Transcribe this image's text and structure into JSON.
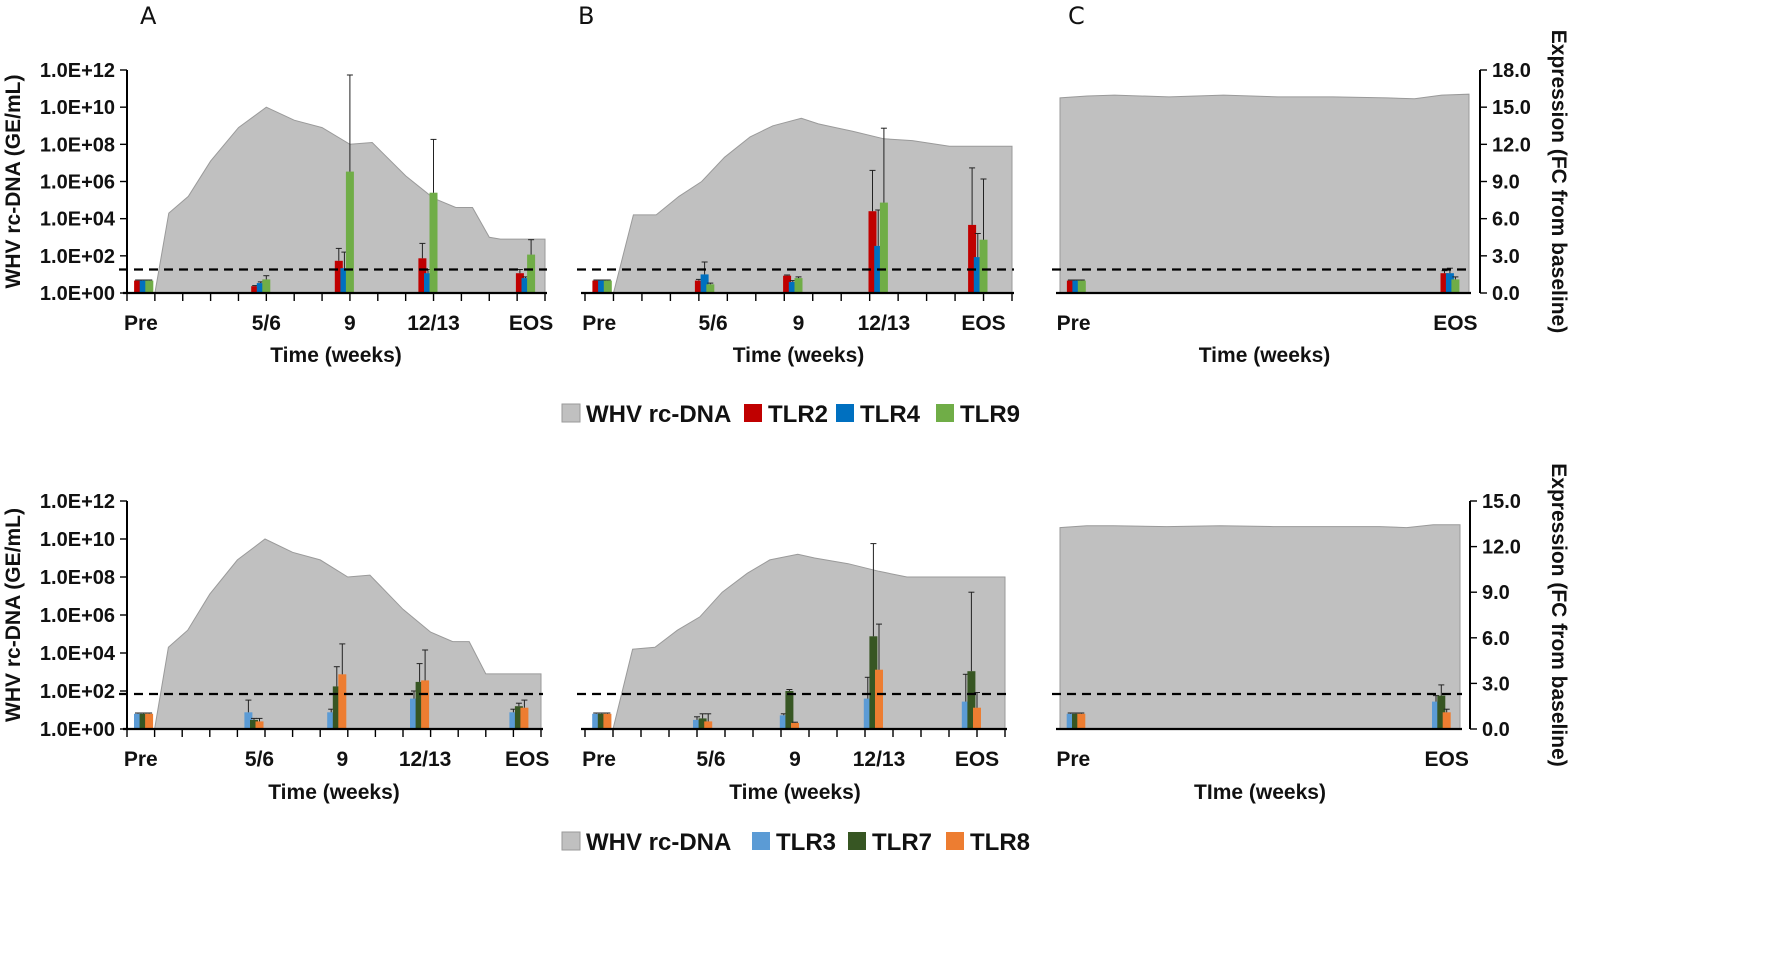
{
  "colors": {
    "area": "#c0c0c0",
    "area_stroke": "#9a9a9a",
    "TLR2": "#c00000",
    "TLR4": "#0070c0",
    "TLR9": "#70ad47",
    "TLR3": "#5b9bd5",
    "TLR7": "#375623",
    "TLR8": "#ed7d31"
  },
  "legends": [
    {
      "items": [
        {
          "label": "WHV rc-DNA",
          "kind": "area",
          "color": "#c0c0c0"
        },
        {
          "label": "TLR2",
          "kind": "bar",
          "color": "#c00000"
        },
        {
          "label": "TLR4",
          "kind": "bar",
          "color": "#0070c0"
        },
        {
          "label": "TLR9",
          "kind": "bar",
          "color": "#70ad47"
        }
      ]
    },
    {
      "items": [
        {
          "label": "WHV rc-DNA",
          "kind": "area",
          "color": "#c0c0c0"
        },
        {
          "label": "TLR3",
          "kind": "bar",
          "color": "#5b9bd5"
        },
        {
          "label": "TLR7",
          "kind": "bar",
          "color": "#375623"
        },
        {
          "label": "TLR8",
          "kind": "bar",
          "color": "#ed7d31"
        }
      ]
    }
  ],
  "chart_data": [
    {
      "id": "top-A",
      "panel_letter": "A",
      "type": "bar+area",
      "yaxis_side": "left",
      "ylabel": "WHV rc-DNA (GE/mL)",
      "xlabel": "Time (weeks)",
      "y_left_ticks": [
        "1.0E+00",
        "1.0E+02",
        "1.0E+04",
        "1.0E+06",
        "1.0E+08",
        "1.0E+10",
        "1.0E+12"
      ],
      "y_left_range_log10": [
        0,
        12
      ],
      "y_right_range": [
        0,
        18
      ],
      "x_ticks": 16,
      "category_labels": [
        {
          "label": "Pre",
          "at": 0.5
        },
        {
          "label": "5/6",
          "at": 5
        },
        {
          "label": "9",
          "at": 8
        },
        {
          "label": "12/13",
          "at": 11
        },
        {
          "label": "EOS",
          "at": 14.5
        }
      ],
      "area_log10": [
        [
          0,
          0
        ],
        [
          1,
          0
        ],
        [
          1.5,
          4.3
        ],
        [
          2.2,
          5.2
        ],
        [
          3,
          7.1
        ],
        [
          4,
          8.9
        ],
        [
          5,
          10
        ],
        [
          6,
          9.3
        ],
        [
          7,
          8.9
        ],
        [
          8,
          8
        ],
        [
          8.8,
          8.1
        ],
        [
          10,
          6.3
        ],
        [
          11,
          5.1
        ],
        [
          11.8,
          4.6
        ],
        [
          12.4,
          4.6
        ],
        [
          13,
          3
        ],
        [
          13.4,
          2.9
        ],
        [
          15,
          2.9
        ],
        [
          15,
          0
        ]
      ],
      "baseline_fc": 1.9,
      "series": [
        {
          "name": "TLR2",
          "bars": [
            {
              "x": 0.4,
              "v": 1.0,
              "err": 0.05
            },
            {
              "x": 4.6,
              "v": 0.55,
              "err": 0.05
            },
            {
              "x": 7.6,
              "v": 2.6,
              "err": 1.0
            },
            {
              "x": 10.6,
              "v": 2.8,
              "err": 1.2
            },
            {
              "x": 14.1,
              "v": 1.6,
              "err": 0.3
            }
          ]
        },
        {
          "name": "TLR4",
          "bars": [
            {
              "x": 0.6,
              "v": 1.0,
              "err": 0.05
            },
            {
              "x": 4.8,
              "v": 0.8,
              "err": 0.1
            },
            {
              "x": 7.8,
              "v": 2.0,
              "err": 1.3
            },
            {
              "x": 10.8,
              "v": 1.6,
              "err": 0.3
            },
            {
              "x": 14.3,
              "v": 1.2,
              "err": 0.1
            }
          ]
        },
        {
          "name": "TLR9",
          "bars": [
            {
              "x": 0.8,
              "v": 1.0,
              "err": 0.05
            },
            {
              "x": 5.0,
              "v": 1.1,
              "err": 0.3
            },
            {
              "x": 8.0,
              "v": 9.8,
              "err": 7.8
            },
            {
              "x": 11.0,
              "v": 8.1,
              "err": 4.3
            },
            {
              "x": 14.5,
              "v": 3.1,
              "err": 1.2
            }
          ]
        }
      ]
    },
    {
      "id": "top-B",
      "panel_letter": "B",
      "type": "bar+area",
      "yaxis_side": "none",
      "ylabel": "",
      "xlabel": "Time (weeks)",
      "y_left_range_log10": [
        0,
        12
      ],
      "y_right_range": [
        0,
        18
      ],
      "x_ticks": 16,
      "category_labels": [
        {
          "label": "Pre",
          "at": 0.5
        },
        {
          "label": "5/6",
          "at": 4.5
        },
        {
          "label": "9",
          "at": 7.5
        },
        {
          "label": "12/13",
          "at": 10.5
        },
        {
          "label": "EOS",
          "at": 14
        }
      ],
      "area_log10": [
        [
          0,
          0
        ],
        [
          1,
          0
        ],
        [
          1.7,
          4.2
        ],
        [
          2.5,
          4.2
        ],
        [
          3.3,
          5.2
        ],
        [
          4.1,
          6
        ],
        [
          4.9,
          7.3
        ],
        [
          5.8,
          8.4
        ],
        [
          6.6,
          9
        ],
        [
          7.6,
          9.4
        ],
        [
          8.2,
          9.1
        ],
        [
          9.4,
          8.7
        ],
        [
          10.5,
          8.3
        ],
        [
          11.5,
          8.2
        ],
        [
          12.8,
          7.9
        ],
        [
          15,
          7.9
        ],
        [
          15,
          0
        ]
      ],
      "baseline_fc": 1.9,
      "series": [
        {
          "name": "TLR2",
          "bars": [
            {
              "x": 0.4,
              "v": 1.0,
              "err": 0.05
            },
            {
              "x": 4.0,
              "v": 1.0,
              "err": 0.1
            },
            {
              "x": 7.1,
              "v": 1.4,
              "err": 0.05
            },
            {
              "x": 10.1,
              "v": 6.6,
              "err": 3.3
            },
            {
              "x": 13.6,
              "v": 5.5,
              "err": 4.6
            }
          ]
        },
        {
          "name": "TLR4",
          "bars": [
            {
              "x": 0.6,
              "v": 1.0,
              "err": 0.05
            },
            {
              "x": 4.2,
              "v": 1.5,
              "err": 1.0
            },
            {
              "x": 7.3,
              "v": 0.9,
              "err": 0.1
            },
            {
              "x": 10.3,
              "v": 3.8,
              "err": 2.9
            },
            {
              "x": 13.8,
              "v": 2.9,
              "err": 1.9
            }
          ]
        },
        {
          "name": "TLR9",
          "bars": [
            {
              "x": 0.8,
              "v": 1.0,
              "err": 0.05
            },
            {
              "x": 4.4,
              "v": 0.7,
              "err": 0.1
            },
            {
              "x": 7.5,
              "v": 1.2,
              "err": 0.1
            },
            {
              "x": 10.5,
              "v": 7.3,
              "err": 6.0
            },
            {
              "x": 14.0,
              "v": 4.3,
              "err": 4.9
            }
          ]
        }
      ]
    },
    {
      "id": "top-C",
      "panel_letter": "C",
      "type": "bar+area",
      "yaxis_side": "right",
      "ylabel": "Expression (FC from baseline)",
      "xlabel": "Time (weeks)",
      "y_right_ticks": [
        "0.0",
        "3.0",
        "6.0",
        "9.0",
        "12.0",
        "15.0",
        "18.0"
      ],
      "y_left_range_log10": [
        0,
        12
      ],
      "y_right_range": [
        0,
        18
      ],
      "x_ticks": 0,
      "category_labels": [
        {
          "label": "Pre",
          "at": 0.5
        },
        {
          "label": "EOS",
          "at": 14.5
        }
      ],
      "area_log10": [
        [
          0,
          0
        ],
        [
          0,
          10.5
        ],
        [
          1,
          10.6
        ],
        [
          2,
          10.65
        ],
        [
          4,
          10.55
        ],
        [
          6,
          10.65
        ],
        [
          8,
          10.55
        ],
        [
          10,
          10.55
        ],
        [
          12,
          10.5
        ],
        [
          13,
          10.45
        ],
        [
          14,
          10.65
        ],
        [
          15,
          10.7
        ],
        [
          15,
          0
        ]
      ],
      "baseline_fc": 1.9,
      "series": [
        {
          "name": "TLR2",
          "bars": [
            {
              "x": 0.4,
              "v": 1.0,
              "err": 0.05
            },
            {
              "x": 14.1,
              "v": 1.6,
              "err": 0.2
            }
          ]
        },
        {
          "name": "TLR4",
          "bars": [
            {
              "x": 0.6,
              "v": 1.0,
              "err": 0.05
            },
            {
              "x": 14.3,
              "v": 1.6,
              "err": 0.4
            }
          ]
        },
        {
          "name": "TLR9",
          "bars": [
            {
              "x": 0.8,
              "v": 1.0,
              "err": 0.05
            },
            {
              "x": 14.5,
              "v": 1.1,
              "err": 0.2
            }
          ]
        }
      ]
    },
    {
      "id": "bottom-A",
      "panel_letter": "",
      "type": "bar+area",
      "yaxis_side": "left",
      "ylabel": "WHV rc-DNA (GE/mL)",
      "xlabel": "Time (weeks)",
      "y_left_ticks": [
        "1.0E+00",
        "1.0E+02",
        "1.0E+04",
        "1.0E+06",
        "1.0E+08",
        "1.0E+10",
        "1.0E+12"
      ],
      "y_left_range_log10": [
        0,
        12
      ],
      "y_right_range": [
        0,
        15
      ],
      "x_ticks": 16,
      "category_labels": [
        {
          "label": "Pre",
          "at": 0.5
        },
        {
          "label": "5/6",
          "at": 4.8
        },
        {
          "label": "9",
          "at": 7.8
        },
        {
          "label": "12/13",
          "at": 10.8
        },
        {
          "label": "EOS",
          "at": 14.5
        }
      ],
      "area_log10": [
        [
          0,
          0
        ],
        [
          1,
          0
        ],
        [
          1.5,
          4.3
        ],
        [
          2.2,
          5.2
        ],
        [
          3,
          7.1
        ],
        [
          4,
          8.9
        ],
        [
          5,
          10
        ],
        [
          6,
          9.3
        ],
        [
          7,
          8.9
        ],
        [
          8,
          8
        ],
        [
          8.8,
          8.1
        ],
        [
          10,
          6.3
        ],
        [
          11,
          5.1
        ],
        [
          11.8,
          4.6
        ],
        [
          12.4,
          4.6
        ],
        [
          13,
          2.9
        ],
        [
          13.4,
          2.9
        ],
        [
          15,
          2.9
        ],
        [
          15,
          0
        ]
      ],
      "baseline_fc": 2.3,
      "series": [
        {
          "name": "TLR3",
          "bars": [
            {
              "x": 0.4,
              "v": 1.0,
              "err": 0.05
            },
            {
              "x": 4.4,
              "v": 1.1,
              "err": 0.8
            },
            {
              "x": 7.4,
              "v": 1.1,
              "err": 0.2
            },
            {
              "x": 10.4,
              "v": 2.0,
              "err": 0.5
            },
            {
              "x": 14.0,
              "v": 1.1,
              "err": 0.2
            }
          ]
        },
        {
          "name": "TLR7",
          "bars": [
            {
              "x": 0.6,
              "v": 1.0,
              "err": 0.05
            },
            {
              "x": 4.6,
              "v": 0.6,
              "err": 0.1
            },
            {
              "x": 7.6,
              "v": 2.8,
              "err": 1.3
            },
            {
              "x": 10.6,
              "v": 3.1,
              "err": 1.2
            },
            {
              "x": 14.2,
              "v": 1.5,
              "err": 0.2
            }
          ]
        },
        {
          "name": "TLR8",
          "bars": [
            {
              "x": 0.8,
              "v": 1.0,
              "err": 0.05
            },
            {
              "x": 4.8,
              "v": 0.5,
              "err": 0.2
            },
            {
              "x": 7.8,
              "v": 3.6,
              "err": 2.0
            },
            {
              "x": 10.8,
              "v": 3.2,
              "err": 2.0
            },
            {
              "x": 14.4,
              "v": 1.4,
              "err": 0.5
            }
          ]
        }
      ]
    },
    {
      "id": "bottom-B",
      "panel_letter": "",
      "type": "bar+area",
      "yaxis_side": "none",
      "ylabel": "",
      "xlabel": "Time (weeks)",
      "y_left_range_log10": [
        0,
        12
      ],
      "y_right_range": [
        0,
        15
      ],
      "x_ticks": 16,
      "category_labels": [
        {
          "label": "Pre",
          "at": 0.5
        },
        {
          "label": "5/6",
          "at": 4.5
        },
        {
          "label": "9",
          "at": 7.5
        },
        {
          "label": "12/13",
          "at": 10.5
        },
        {
          "label": "EOS",
          "at": 14
        }
      ],
      "area_log10": [
        [
          0,
          0
        ],
        [
          1,
          0
        ],
        [
          1.7,
          4.2
        ],
        [
          2.5,
          4.3
        ],
        [
          3.3,
          5.2
        ],
        [
          4.1,
          5.9
        ],
        [
          4.9,
          7.2
        ],
        [
          5.8,
          8.2
        ],
        [
          6.6,
          8.9
        ],
        [
          7.6,
          9.2
        ],
        [
          8.2,
          9
        ],
        [
          9.4,
          8.7
        ],
        [
          10.5,
          8.3
        ],
        [
          11.5,
          8
        ],
        [
          12.8,
          8
        ],
        [
          15,
          8
        ],
        [
          15,
          0
        ]
      ],
      "baseline_fc": 2.3,
      "series": [
        {
          "name": "TLR3",
          "bars": [
            {
              "x": 0.4,
              "v": 1.0,
              "err": 0.05
            },
            {
              "x": 4.0,
              "v": 0.6,
              "err": 0.2
            },
            {
              "x": 7.1,
              "v": 0.9,
              "err": 0.1
            },
            {
              "x": 10.1,
              "v": 2.0,
              "err": 1.4
            },
            {
              "x": 13.6,
              "v": 1.8,
              "err": 1.8
            }
          ]
        },
        {
          "name": "TLR7",
          "bars": [
            {
              "x": 0.6,
              "v": 1.0,
              "err": 0.05
            },
            {
              "x": 4.2,
              "v": 0.7,
              "err": 0.3
            },
            {
              "x": 7.3,
              "v": 2.5,
              "err": 0.1
            },
            {
              "x": 10.3,
              "v": 6.1,
              "err": 6.1
            },
            {
              "x": 13.8,
              "v": 3.8,
              "err": 5.2
            }
          ]
        },
        {
          "name": "TLR8",
          "bars": [
            {
              "x": 0.8,
              "v": 1.0,
              "err": 0.05
            },
            {
              "x": 4.4,
              "v": 0.5,
              "err": 0.5
            },
            {
              "x": 7.5,
              "v": 0.4,
              "err": 0.05
            },
            {
              "x": 10.5,
              "v": 3.9,
              "err": 3.0
            },
            {
              "x": 14.0,
              "v": 1.4,
              "err": 1.0
            }
          ]
        }
      ]
    },
    {
      "id": "bottom-C",
      "panel_letter": "",
      "type": "bar+area",
      "yaxis_side": "right",
      "ylabel": "Expression (FC from baseline)",
      "xlabel": "TIme (weeks)",
      "y_right_ticks": [
        "0.0",
        "3.0",
        "6.0",
        "9.0",
        "12.0",
        "15.0"
      ],
      "y_left_range_log10": [
        0,
        12
      ],
      "y_right_range": [
        0,
        15
      ],
      "x_ticks": 0,
      "category_labels": [
        {
          "label": "Pre",
          "at": 0.5
        },
        {
          "label": "EOS",
          "at": 14.5
        }
      ],
      "area_log10": [
        [
          0,
          0
        ],
        [
          0,
          10.6
        ],
        [
          1,
          10.7
        ],
        [
          2,
          10.7
        ],
        [
          4,
          10.65
        ],
        [
          6,
          10.7
        ],
        [
          8,
          10.65
        ],
        [
          10,
          10.65
        ],
        [
          12,
          10.65
        ],
        [
          13,
          10.6
        ],
        [
          14,
          10.75
        ],
        [
          15,
          10.75
        ],
        [
          15,
          0
        ]
      ],
      "baseline_fc": 2.3,
      "series": [
        {
          "name": "TLR3",
          "bars": [
            {
              "x": 0.4,
              "v": 1.0,
              "err": 0.05
            },
            {
              "x": 14.1,
              "v": 1.8,
              "err": 0.4
            }
          ]
        },
        {
          "name": "TLR7",
          "bars": [
            {
              "x": 0.6,
              "v": 1.0,
              "err": 0.05
            },
            {
              "x": 14.3,
              "v": 2.2,
              "err": 0.7
            }
          ]
        },
        {
          "name": "TLR8",
          "bars": [
            {
              "x": 0.8,
              "v": 1.0,
              "err": 0.05
            },
            {
              "x": 14.5,
              "v": 1.1,
              "err": 0.2
            }
          ]
        }
      ]
    }
  ]
}
